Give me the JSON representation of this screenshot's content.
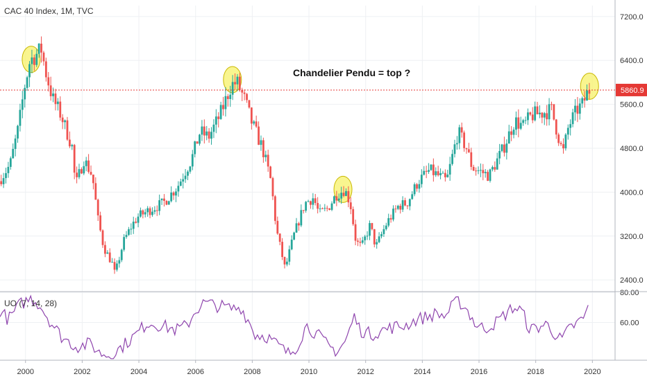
{
  "chart_data": [
    {
      "type": "candlestick",
      "title": "CAC 40 Index, 1M, TVC",
      "x_ticks": [
        "2000",
        "2002",
        "2004",
        "2006",
        "2008",
        "2010",
        "2012",
        "2014",
        "2016",
        "2018",
        "2020"
      ],
      "y_ticks": [
        "7200.0",
        "6400.0",
        "5600.0",
        "4800.0",
        "4000.0",
        "3200.0",
        "2400.0"
      ],
      "ylim": [
        2200,
        7400
      ],
      "xlim": [
        1999.1,
        2020.8
      ],
      "last_price": 5860.9,
      "last_price_label": "5860.9",
      "annotation": "Chandelier Pendu = top ?",
      "highlights": [
        {
          "x": 2000.2,
          "y": 6420
        },
        {
          "x": 2007.3,
          "y": 6050
        },
        {
          "x": 2011.2,
          "y": 4050
        },
        {
          "x": 2019.9,
          "y": 5930
        }
      ],
      "up_color": "#26a69a",
      "down_color": "#ef5350",
      "highlight_color": "#f7f26a",
      "price_line_color": "#e53935",
      "grid": true,
      "anchors": [
        [
          1999.1,
          4200
        ],
        [
          1999.5,
          4500
        ],
        [
          1999.8,
          5200
        ],
        [
          2000.0,
          5900
        ],
        [
          2000.2,
          6400
        ],
        [
          2000.6,
          6600
        ],
        [
          2000.75,
          6200
        ],
        [
          2001.0,
          5700
        ],
        [
          2001.3,
          5400
        ],
        [
          2001.7,
          4800
        ],
        [
          2001.8,
          4100
        ],
        [
          2002.1,
          4600
        ],
        [
          2002.4,
          4300
        ],
        [
          2002.6,
          3500
        ],
        [
          2002.8,
          3000
        ],
        [
          2003.1,
          2700
        ],
        [
          2003.2,
          2500
        ],
        [
          2003.5,
          3100
        ],
        [
          2003.8,
          3400
        ],
        [
          2004.0,
          3550
        ],
        [
          2004.5,
          3700
        ],
        [
          2004.9,
          3800
        ],
        [
          2005.4,
          4100
        ],
        [
          2005.9,
          4600
        ],
        [
          2006.2,
          5100
        ],
        [
          2006.5,
          5000
        ],
        [
          2006.9,
          5400
        ],
        [
          2007.3,
          5950
        ],
        [
          2007.5,
          6000
        ],
        [
          2007.8,
          5650
        ],
        [
          2008.0,
          5300
        ],
        [
          2008.4,
          4800
        ],
        [
          2008.7,
          4200
        ],
        [
          2008.9,
          3300
        ],
        [
          2009.2,
          2600
        ],
        [
          2009.5,
          3200
        ],
        [
          2009.9,
          3800
        ],
        [
          2010.2,
          3900
        ],
        [
          2010.4,
          3600
        ],
        [
          2010.7,
          3700
        ],
        [
          2011.0,
          3950
        ],
        [
          2011.3,
          4050
        ],
        [
          2011.5,
          3800
        ],
        [
          2011.7,
          3100
        ],
        [
          2011.9,
          3000
        ],
        [
          2012.2,
          3400
        ],
        [
          2012.4,
          3000
        ],
        [
          2012.8,
          3450
        ],
        [
          2013.2,
          3750
        ],
        [
          2013.5,
          3800
        ],
        [
          2013.9,
          4200
        ],
        [
          2014.3,
          4400
        ],
        [
          2014.6,
          4300
        ],
        [
          2014.9,
          4200
        ],
        [
          2015.3,
          5100
        ],
        [
          2015.6,
          4800
        ],
        [
          2015.8,
          4450
        ],
        [
          2016.0,
          4400
        ],
        [
          2016.4,
          4300
        ],
        [
          2016.9,
          4800
        ],
        [
          2017.3,
          5300
        ],
        [
          2017.6,
          5200
        ],
        [
          2017.9,
          5400
        ],
        [
          2018.3,
          5450
        ],
        [
          2018.6,
          5500
        ],
        [
          2018.9,
          4900
        ],
        [
          2019.0,
          4700
        ],
        [
          2019.2,
          5200
        ],
        [
          2019.5,
          5500
        ],
        [
          2019.7,
          5600
        ],
        [
          2019.9,
          5860
        ]
      ]
    },
    {
      "type": "line",
      "title": "UO (7, 14, 28)",
      "y_ticks": [
        "80.00",
        "60.00"
      ],
      "ylim": [
        35,
        80
      ],
      "line_color": "#8e44ad",
      "anchors": [
        [
          1999.1,
          68
        ],
        [
          1999.4,
          62
        ],
        [
          1999.8,
          72
        ],
        [
          2000.2,
          76
        ],
        [
          2000.5,
          72
        ],
        [
          2000.9,
          60
        ],
        [
          2001.3,
          50
        ],
        [
          2001.8,
          44
        ],
        [
          2002.3,
          46
        ],
        [
          2002.6,
          40
        ],
        [
          2003.0,
          38
        ],
        [
          2003.4,
          44
        ],
        [
          2003.9,
          52
        ],
        [
          2004.3,
          60
        ],
        [
          2004.8,
          58
        ],
        [
          2005.3,
          55
        ],
        [
          2005.7,
          58
        ],
        [
          2006.0,
          68
        ],
        [
          2006.3,
          73
        ],
        [
          2006.8,
          71
        ],
        [
          2007.3,
          69
        ],
        [
          2007.6,
          70
        ],
        [
          2007.9,
          60
        ],
        [
          2008.1,
          52
        ],
        [
          2008.5,
          51
        ],
        [
          2008.9,
          45
        ],
        [
          2009.3,
          39
        ],
        [
          2009.6,
          45
        ],
        [
          2009.9,
          58
        ],
        [
          2010.3,
          52
        ],
        [
          2010.7,
          44
        ],
        [
          2011.0,
          41
        ],
        [
          2011.3,
          48
        ],
        [
          2011.6,
          64
        ],
        [
          2011.8,
          55
        ],
        [
          2012.2,
          52
        ],
        [
          2012.6,
          55
        ],
        [
          2013.0,
          57
        ],
        [
          2013.4,
          58
        ],
        [
          2013.8,
          62
        ],
        [
          2014.2,
          64
        ],
        [
          2014.5,
          66
        ],
        [
          2014.8,
          64
        ],
        [
          2015.1,
          72
        ],
        [
          2015.3,
          74
        ],
        [
          2015.6,
          68
        ],
        [
          2015.9,
          58
        ],
        [
          2016.2,
          56
        ],
        [
          2016.6,
          60
        ],
        [
          2016.9,
          65
        ],
        [
          2017.2,
          70
        ],
        [
          2017.5,
          68
        ],
        [
          2017.8,
          55
        ],
        [
          2018.1,
          57
        ],
        [
          2018.4,
          59
        ],
        [
          2018.7,
          52
        ],
        [
          2018.9,
          48
        ],
        [
          2019.2,
          56
        ],
        [
          2019.5,
          60
        ],
        [
          2019.7,
          63
        ],
        [
          2019.9,
          72
        ]
      ]
    }
  ]
}
